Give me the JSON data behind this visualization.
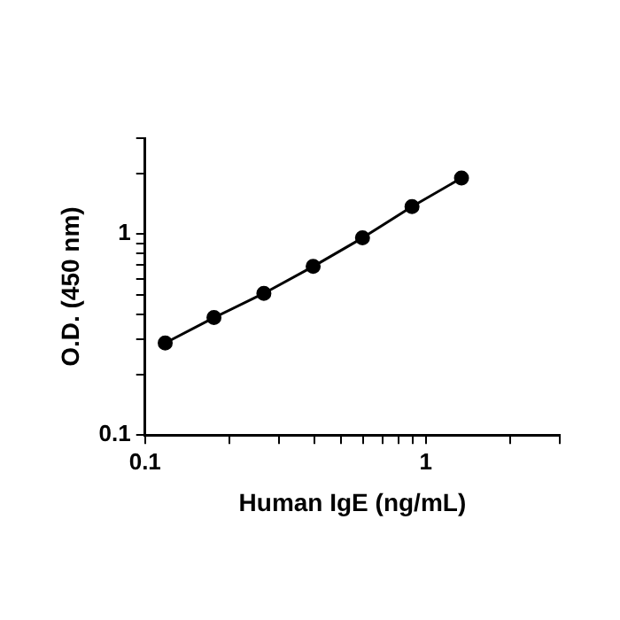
{
  "chart_data": {
    "type": "line",
    "xlabel": "Human IgE (ng/mL)",
    "ylabel": "O.D. (450 nm)",
    "log": "xy",
    "grid": false,
    "legend": false,
    "marker": "circle",
    "line_style": "solid",
    "x": [
      0.118,
      0.176,
      0.265,
      0.397,
      0.595,
      0.893,
      1.34
    ],
    "series": [
      {
        "color": "#000000",
        "values": [
          0.287,
          0.384,
          0.507,
          0.69,
          0.957,
          1.37,
          1.9
        ]
      }
    ],
    "xlim": [
      0.1,
      3
    ],
    "ylim": [
      0.1,
      3
    ],
    "xticks": [
      0.1,
      {
        "value": 0.2,
        "label": null
      },
      {
        "value": 0.3,
        "label": null
      },
      {
        "value": 0.4,
        "label": null
      },
      {
        "value": 0.5,
        "label": null
      },
      {
        "value": 0.6,
        "label": null
      },
      {
        "value": 0.7,
        "label": null
      },
      {
        "value": 0.8,
        "label": null
      },
      {
        "value": 0.9,
        "label": null
      },
      1,
      {
        "value": 2,
        "label": null
      },
      {
        "value": 3,
        "label": null
      }
    ],
    "yticks": [
      0.1,
      {
        "value": 0.2,
        "label": null
      },
      {
        "value": 0.3,
        "label": null
      },
      {
        "value": 0.4,
        "label": null
      },
      {
        "value": 0.5,
        "label": null
      },
      {
        "value": 0.6,
        "label": null
      },
      {
        "value": 0.7,
        "label": null
      },
      {
        "value": 0.8,
        "label": null
      },
      {
        "value": 0.9,
        "label": null
      },
      1,
      {
        "value": 2,
        "label": null
      },
      {
        "value": 3,
        "label": null
      }
    ]
  }
}
